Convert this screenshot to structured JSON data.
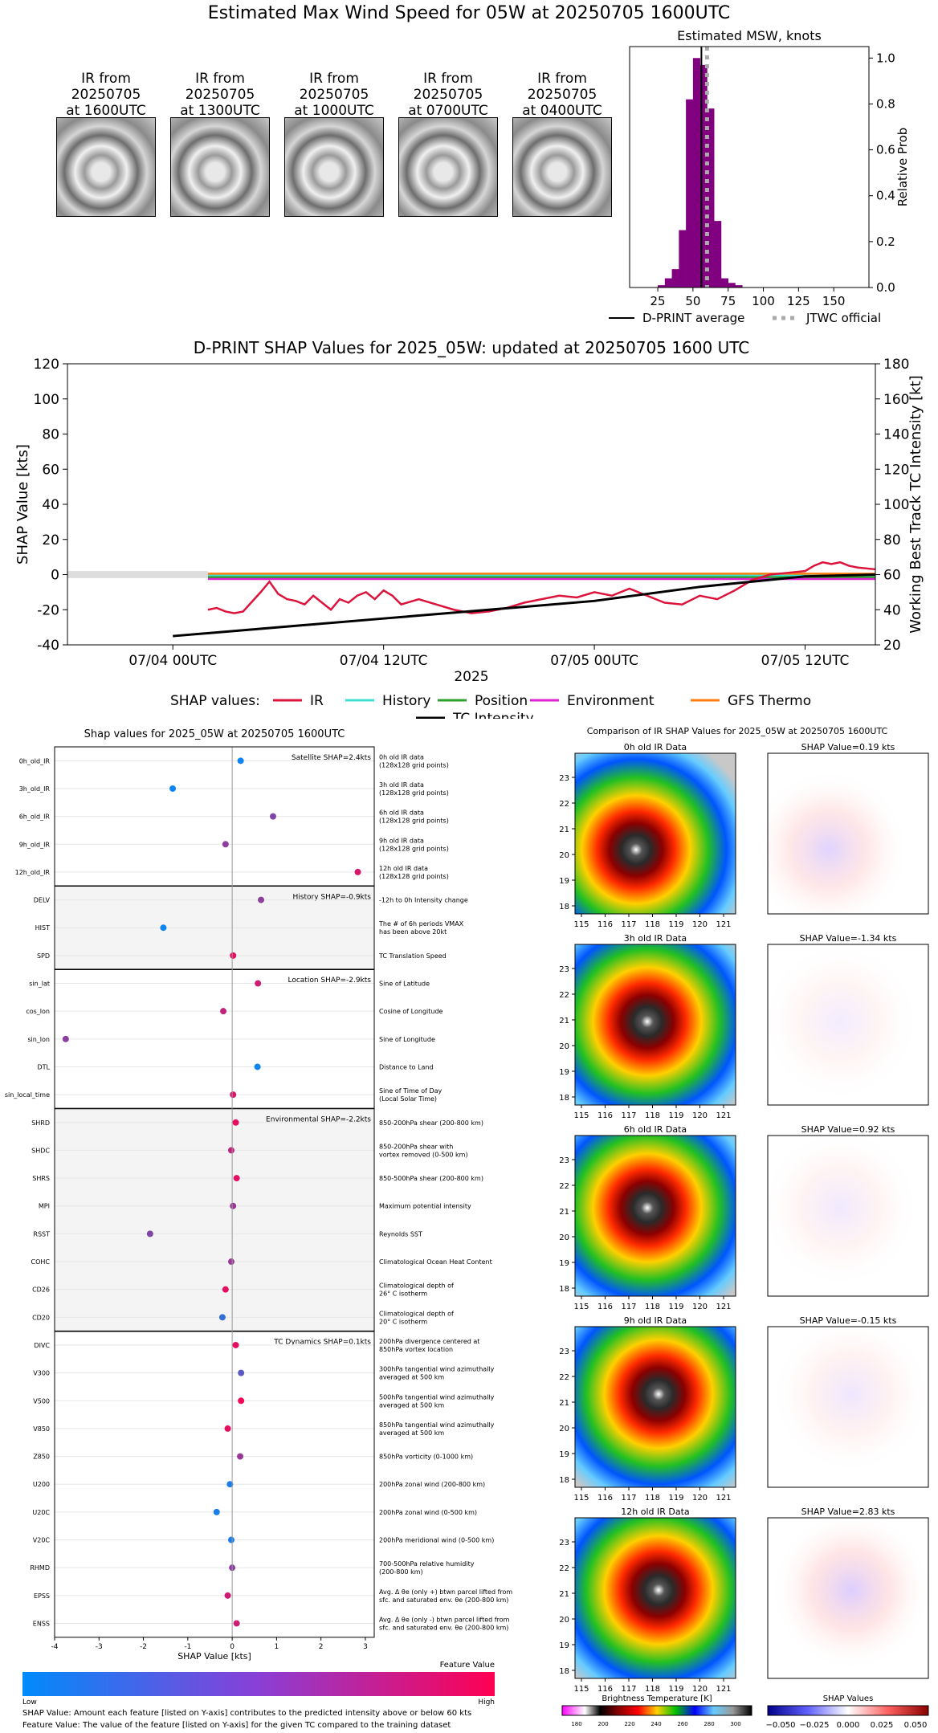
{
  "main_title": "Estimated Max Wind Speed for 05W at 20250705 1600UTC",
  "ir_thumbnails": [
    {
      "line1": "IR from",
      "line2": "20250705",
      "line3": "at 1600UTC"
    },
    {
      "line1": "IR from",
      "line2": "20250705",
      "line3": "at 1300UTC"
    },
    {
      "line1": "IR from",
      "line2": "20250705",
      "line3": "at 1000UTC"
    },
    {
      "line1": "IR from",
      "line2": "20250705",
      "line3": "at 0700UTC"
    },
    {
      "line1": "IR from",
      "line2": "20250705",
      "line3": "at 0400UTC"
    }
  ],
  "colors": {
    "hist_bar": "#800080",
    "ir_series": "#dc143c",
    "history_series": "#40e0d0",
    "position_series": "#2ca02c",
    "environment_series": "#e020d0",
    "gfs_series": "#ff7f0e",
    "tc_intensity": "#000000",
    "cbar_low": "#008bfb",
    "cbar_high": "#ff0052"
  },
  "chart_data": [
    {
      "type": "bar",
      "title": "Estimated MSW, knots",
      "ylabel": "Relative Prob",
      "xlim": [
        5,
        175
      ],
      "ylim": [
        0,
        1.05
      ],
      "xticks": [
        "25",
        "50",
        "75",
        "100",
        "125",
        "150"
      ],
      "yticks": [
        "0.0",
        "0.2",
        "0.4",
        "0.6",
        "0.8",
        "1.0"
      ],
      "bin_width": 5,
      "bins": [
        {
          "x": 27.5,
          "v": 0.01
        },
        {
          "x": 32.5,
          "v": 0.04
        },
        {
          "x": 37.5,
          "v": 0.08
        },
        {
          "x": 42.5,
          "v": 0.25
        },
        {
          "x": 47.5,
          "v": 0.82
        },
        {
          "x": 52.5,
          "v": 1.0
        },
        {
          "x": 57.5,
          "v": 0.97
        },
        {
          "x": 62.5,
          "v": 0.78
        },
        {
          "x": 67.5,
          "v": 0.29
        },
        {
          "x": 72.5,
          "v": 0.04
        },
        {
          "x": 77.5,
          "v": 0.02
        },
        {
          "x": 82.5,
          "v": 0.01
        }
      ],
      "dprint_average": 56,
      "jtwc_official": 60,
      "legend": [
        "D-PRINT average",
        "JTWC official"
      ]
    },
    {
      "type": "line",
      "title": "D-PRINT SHAP Values for 2025_05W: updated at 20250705 1600 UTC",
      "ylabel": "SHAP Value [kts]",
      "y2label": "Working Best Track TC Intensity [kt]",
      "xlabel": "2025",
      "ylim": [
        -40,
        120
      ],
      "y2lim": [
        20,
        180
      ],
      "xlim_hours": [
        -6,
        40
      ],
      "xticks": [
        {
          "h": 0,
          "label": "07/04 00UTC"
        },
        {
          "h": 12,
          "label": "07/04 12UTC"
        },
        {
          "h": 24,
          "label": "07/05 00UTC"
        },
        {
          "h": 36,
          "label": "07/05 12UTC"
        }
      ],
      "yticks": [
        "-40",
        "-20",
        "0",
        "20",
        "40",
        "60",
        "80",
        "100",
        "120"
      ],
      "y2ticks": [
        "20",
        "40",
        "60",
        "80",
        "100",
        "120",
        "140",
        "160",
        "180"
      ],
      "legend_title": "SHAP values:",
      "series": [
        {
          "name": "IR",
          "hours": [
            2,
            2.5,
            3,
            3.5,
            4,
            5,
            5.5,
            6,
            6.5,
            7,
            7.5,
            8,
            8.5,
            9,
            9.5,
            10,
            10.5,
            11,
            11.5,
            12,
            12.5,
            13,
            14,
            15,
            16,
            17,
            18,
            19,
            20,
            21,
            22,
            23,
            24,
            25,
            26,
            27,
            28,
            29,
            30,
            31,
            32,
            33,
            34,
            35,
            36,
            36.5,
            37,
            37.5,
            38,
            38.5,
            39,
            40
          ],
          "values": [
            -20,
            -19,
            -21,
            -22,
            -21,
            -10,
            -4,
            -11,
            -14,
            -15,
            -17,
            -12,
            -16,
            -20,
            -14,
            -16,
            -12,
            -10,
            -14,
            -9,
            -12,
            -17,
            -14,
            -17,
            -20,
            -22,
            -21,
            -19,
            -16,
            -14,
            -12,
            -13,
            -10,
            -12,
            -8,
            -12,
            -16,
            -17,
            -12,
            -14,
            -9,
            -3,
            0,
            1,
            2,
            5,
            7,
            6,
            7,
            5,
            4,
            3
          ]
        },
        {
          "name": "History",
          "hours": [
            2,
            40
          ],
          "values": [
            -0.5,
            -0.5
          ]
        },
        {
          "name": "Position",
          "hours": [
            2,
            40
          ],
          "values": [
            -1.5,
            -1.5
          ]
        },
        {
          "name": "Environment",
          "hours": [
            2,
            40
          ],
          "values": [
            -2.5,
            -2.5
          ]
        },
        {
          "name": "GFS Thermo",
          "hours": [
            2,
            40
          ],
          "values": [
            0.5,
            0.5
          ]
        }
      ],
      "tc_intensity": {
        "name": "TC Intensity",
        "hours": [
          0,
          6,
          12,
          18,
          24,
          30,
          33,
          36,
          40
        ],
        "values": [
          25,
          30,
          35,
          40,
          45,
          53,
          56,
          59,
          60
        ]
      }
    },
    {
      "type": "scatter",
      "title": "Shap values for 2025_05W at 20250705 1600UTC",
      "xlabel": "SHAP Value [kts]",
      "xlim": [
        -4,
        3.2
      ],
      "xticks": [
        "-4",
        "-3",
        "-2",
        "-1",
        "0",
        "1",
        "2",
        "3"
      ],
      "groups": [
        {
          "label": "Satellite SHAP=2.4kts",
          "shaded": false,
          "features": [
            {
              "name": "0h_old_IR",
              "value": 0.19,
              "level": 0.05,
              "desc": [
                "0h old IR data",
                "(128x128 grid points)"
              ]
            },
            {
              "name": "3h_old_IR",
              "value": -1.34,
              "level": 0.05,
              "desc": [
                "3h old IR data",
                "(128x128 grid points)"
              ]
            },
            {
              "name": "6h_old_IR",
              "value": 0.92,
              "level": 0.5,
              "desc": [
                "6h old IR data",
                "(128x128 grid points)"
              ]
            },
            {
              "name": "9h_old_IR",
              "value": -0.15,
              "level": 0.55,
              "desc": [
                "9h old IR data",
                "(128x128 grid points)"
              ]
            },
            {
              "name": "12h_old_IR",
              "value": 2.83,
              "level": 0.85,
              "desc": [
                "12h old IR data",
                "(128x128 grid points)"
              ]
            }
          ]
        },
        {
          "label": "History SHAP=-0.9kts",
          "shaded": true,
          "features": [
            {
              "name": "DELV",
              "value": 0.65,
              "level": 0.55,
              "desc": [
                "-12h to 0h Intensity change"
              ]
            },
            {
              "name": "HIST",
              "value": -1.55,
              "level": 0.05,
              "desc": [
                "The # of 6h periods VMAX",
                "has been above 20kt"
              ]
            },
            {
              "name": "SPD",
              "value": 0.02,
              "level": 0.9,
              "desc": [
                "TC Translation Speed"
              ]
            }
          ]
        },
        {
          "label": "Location SHAP=-2.9kts",
          "shaded": false,
          "features": [
            {
              "name": "sin_lat",
              "value": 0.58,
              "level": 0.8,
              "desc": [
                "Sine of Latitude"
              ]
            },
            {
              "name": "cos_lon",
              "value": -0.2,
              "level": 0.75,
              "desc": [
                "Cosine of Longitude"
              ]
            },
            {
              "name": "sin_lon",
              "value": -3.75,
              "level": 0.55,
              "desc": [
                "Sine of Longitude"
              ]
            },
            {
              "name": "DTL",
              "value": 0.57,
              "level": 0.05,
              "desc": [
                "Distance to Land"
              ]
            },
            {
              "name": "sin_local_time",
              "value": 0.02,
              "level": 0.85,
              "desc": [
                "Sine of Time of Day",
                "(Local Solar Time)"
              ]
            }
          ]
        },
        {
          "label": "Environmental SHAP=-2.2kts",
          "shaded": true,
          "features": [
            {
              "name": "SHRD",
              "value": 0.08,
              "level": 0.9,
              "desc": [
                "850-200hPa shear (200-800 km)"
              ]
            },
            {
              "name": "SHDC",
              "value": -0.02,
              "level": 0.75,
              "desc": [
                "850-200hPa shear with",
                "vortex removed (0-500 km)"
              ]
            },
            {
              "name": "SHRS",
              "value": 0.1,
              "level": 0.9,
              "desc": [
                "850-500hPa shear (200-800 km)"
              ]
            },
            {
              "name": "MPI",
              "value": 0.02,
              "level": 0.6,
              "desc": [
                "Maximum potential intensity"
              ]
            },
            {
              "name": "RSST",
              "value": -1.85,
              "level": 0.5,
              "desc": [
                "Reynolds SST"
              ]
            },
            {
              "name": "COHC",
              "value": -0.02,
              "level": 0.6,
              "desc": [
                "Climatological Ocean Heat Content"
              ]
            },
            {
              "name": "CD26",
              "value": -0.15,
              "level": 0.9,
              "desc": [
                "Climatological depth of",
                "26° C isotherm"
              ]
            },
            {
              "name": "CD20",
              "value": -0.22,
              "level": 0.2,
              "desc": [
                "Climatological depth of",
                "20° C isotherm"
              ]
            }
          ]
        },
        {
          "label": "TC Dynamics SHAP=0.1kts",
          "shaded": false,
          "features": [
            {
              "name": "DIVC",
              "value": 0.08,
              "level": 0.9,
              "desc": [
                "200hPa divergence centered at",
                "850hPa vortex location"
              ]
            },
            {
              "name": "V300",
              "value": 0.2,
              "level": 0.35,
              "desc": [
                "300hPa tangential wind azimuthally",
                "averaged at 500 km"
              ]
            },
            {
              "name": "V500",
              "value": 0.2,
              "level": 0.95,
              "desc": [
                "500hPa tangential wind azimuthally",
                "averaged at 500 km"
              ]
            },
            {
              "name": "V850",
              "value": -0.1,
              "level": 0.9,
              "desc": [
                "850hPa tangential wind azimuthally",
                "averaged at 500 km"
              ]
            },
            {
              "name": "Z850",
              "value": 0.18,
              "level": 0.6,
              "desc": [
                "850hPa vorticity (0-1000 km)"
              ]
            },
            {
              "name": "U200",
              "value": -0.05,
              "level": 0.1,
              "desc": [
                "200hPa zonal wind (200-800 km)"
              ]
            },
            {
              "name": "U20C",
              "value": -0.35,
              "level": 0.1,
              "desc": [
                "200hPa zonal wind (0-500 km)"
              ]
            },
            {
              "name": "V20C",
              "value": -0.02,
              "level": 0.1,
              "desc": [
                "200hPa meridional wind (0-500 km)"
              ]
            },
            {
              "name": "RHMD",
              "value": 0.0,
              "level": 0.55,
              "desc": [
                "700-500hPa relative humidity",
                "(200-800 km)"
              ]
            },
            {
              "name": "EPSS",
              "value": -0.1,
              "level": 0.8,
              "desc": [
                "Avg. Δ θe (only +) btwn parcel lifted from",
                "sfc. and saturated env. θe (200-800 km)"
              ]
            },
            {
              "name": "ENSS",
              "value": 0.1,
              "level": 0.8,
              "desc": [
                "Avg. Δ θe (only -) btwn parcel lifted from",
                "sfc. and saturated env. θe (200-800 km)"
              ]
            }
          ]
        }
      ],
      "colorbar": {
        "title": "Feature Value",
        "low": "Low",
        "high": "High"
      }
    },
    {
      "type": "heatmap",
      "title": "Comparison of IR SHAP Values for 2025_05W at 20250705 1600UTC",
      "x_ticks": [
        "115",
        "116",
        "117",
        "118",
        "119",
        "120",
        "121"
      ],
      "y_ticks": [
        "23",
        "22",
        "21",
        "20",
        "19",
        "18"
      ],
      "rows": [
        {
          "ir_title": "0h old IR Data",
          "shap_title": "SHAP Value=0.19 kts",
          "eye_x": 0.38,
          "eye_y": 0.6,
          "intensity": 0.8
        },
        {
          "ir_title": "3h old IR Data",
          "shap_title": "SHAP Value=-1.34 kts",
          "eye_x": 0.45,
          "eye_y": 0.48,
          "intensity": 0.35
        },
        {
          "ir_title": "6h old IR Data",
          "shap_title": "SHAP Value=0.92 kts",
          "eye_x": 0.45,
          "eye_y": 0.45,
          "intensity": 0.4
        },
        {
          "ir_title": "9h old IR Data",
          "shap_title": "SHAP Value=-0.15 kts",
          "eye_x": 0.52,
          "eye_y": 0.42,
          "intensity": 0.45
        },
        {
          "ir_title": "12h old IR Data",
          "shap_title": "SHAP Value=2.83 kts",
          "eye_x": 0.52,
          "eye_y": 0.45,
          "intensity": 0.9
        }
      ],
      "ir_colorbar": {
        "label": "Brightness Temperature [K]",
        "ticks": [
          "180",
          "200",
          "220",
          "240",
          "260",
          "280",
          "300"
        ]
      },
      "shap_colorbar": {
        "label": "SHAP Values",
        "ticks": [
          "−0.050",
          "−0.025",
          "0.000",
          "0.025",
          "0.050"
        ]
      }
    }
  ],
  "footnotes": {
    "line1": "SHAP Value: Amount each feature [listed on Y-axis] contributes to the predicted intensity above or below 60 kts",
    "line2": "Feature Value: The value of the feature [listed on Y-axis] for the given TC compared to the training dataset"
  }
}
